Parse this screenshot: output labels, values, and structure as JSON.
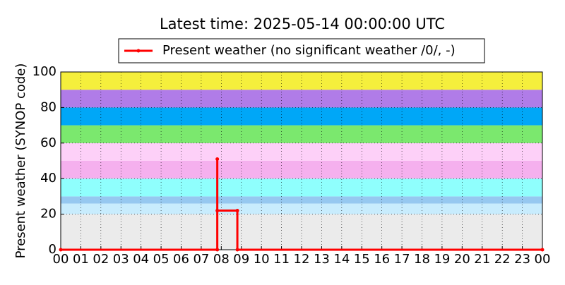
{
  "chart_data": {
    "type": "line",
    "title": "Latest time: 2025-05-14 00:00:00 UTC",
    "y_label": "Present weather (SYNOP code)",
    "x": [
      0,
      7.8,
      7.8,
      7.8,
      8.8,
      8.8,
      24
    ],
    "series": [
      {
        "name": "Present weather (no significant weather /0/, -)",
        "color": "#ff0000",
        "values": [
          0,
          0,
          51,
          22,
          22,
          0,
          0
        ]
      }
    ],
    "xlim": [
      0,
      24
    ],
    "xticks": [
      {
        "value": 0,
        "label": "00"
      },
      {
        "value": 1,
        "label": "01"
      },
      {
        "value": 2,
        "label": "02"
      },
      {
        "value": 3,
        "label": "03"
      },
      {
        "value": 4,
        "label": "04"
      },
      {
        "value": 5,
        "label": "05"
      },
      {
        "value": 6,
        "label": "06"
      },
      {
        "value": 7,
        "label": "07"
      },
      {
        "value": 8,
        "label": "08"
      },
      {
        "value": 9,
        "label": "09"
      },
      10,
      11,
      12,
      13,
      14,
      15,
      16,
      17,
      18,
      19,
      20,
      21,
      22,
      23,
      {
        "value": 24,
        "label": "00"
      }
    ],
    "ylim": [
      0,
      100
    ],
    "yticks": [
      0,
      20,
      40,
      60,
      80,
      100
    ],
    "grid": true,
    "legend": "top",
    "bands": [
      {
        "from": 0,
        "to": 20,
        "color": "#ebebeb"
      },
      {
        "from": 20,
        "to": 26,
        "color": "#c8ecfd"
      },
      {
        "from": 26,
        "to": 30,
        "color": "#96c8f0"
      },
      {
        "from": 30,
        "to": 40,
        "color": "#8ffffd"
      },
      {
        "from": 40,
        "to": 50,
        "color": "#f5b0ee"
      },
      {
        "from": 50,
        "to": 60,
        "color": "#fdd0f8"
      },
      {
        "from": 60,
        "to": 70,
        "color": "#7be86e"
      },
      {
        "from": 70,
        "to": 80,
        "color": "#00a7f7"
      },
      {
        "from": 80,
        "to": 90,
        "color": "#b07ce8"
      },
      {
        "from": 90,
        "to": 100,
        "color": "#f5ef3c"
      }
    ]
  }
}
